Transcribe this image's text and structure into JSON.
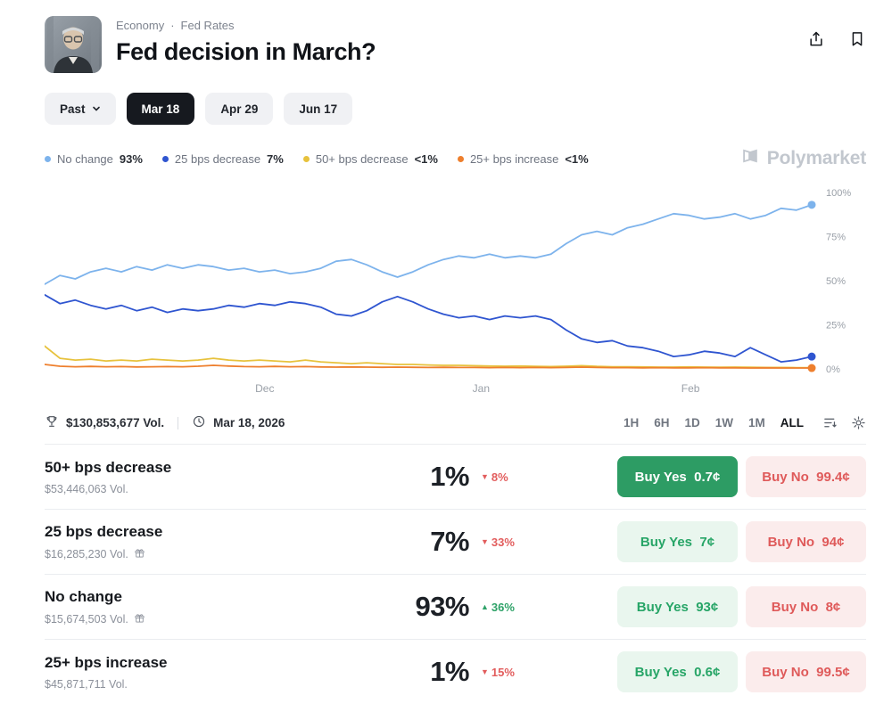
{
  "header": {
    "breadcrumb": {
      "category": "Economy",
      "separator": "·",
      "subcategory": "Fed Rates"
    },
    "title": "Fed decision in March?"
  },
  "tabs": [
    {
      "label": "Past",
      "has_chevron": true,
      "active": false
    },
    {
      "label": "Mar 18",
      "active": true
    },
    {
      "label": "Apr 29",
      "active": false
    },
    {
      "label": "Jun 17",
      "active": false
    }
  ],
  "legend": [
    {
      "label": "No change",
      "value": "93%",
      "color": "#7db3ec"
    },
    {
      "label": "25 bps decrease",
      "value": "7%",
      "color": "#2f55d0"
    },
    {
      "label": "50+ bps decrease",
      "value": "<1%",
      "color": "#e7c23d"
    },
    {
      "label": "25+ bps increase",
      "value": "<1%",
      "color": "#ee7f2d"
    }
  ],
  "brand": "Polymarket",
  "chart_data": {
    "type": "line",
    "title": "Fed decision in March? outcome probabilities",
    "ylim": [
      0,
      100
    ],
    "grid": false,
    "legend_position": "top-left",
    "x_step": 2,
    "yticks": [
      {
        "label": "100%",
        "value": 100
      },
      {
        "label": "75%",
        "value": 75
      },
      {
        "label": "50%",
        "value": 50
      },
      {
        "label": "25%",
        "value": 25
      },
      {
        "label": "0%",
        "value": 0
      }
    ],
    "xticks": [
      {
        "label": "Dec",
        "pos": 28.7
      },
      {
        "label": "Jan",
        "pos": 56.9
      },
      {
        "label": "Feb",
        "pos": 84.2
      }
    ],
    "series": [
      {
        "name": "50+ bps decrease",
        "color": "#e7c23d",
        "end_dot": false,
        "values": [
          13,
          6,
          5,
          5.5,
          4.5,
          5,
          4.5,
          5.5,
          5,
          4.5,
          5,
          6,
          5,
          4.5,
          5,
          4.5,
          4,
          5,
          4,
          3.5,
          3,
          3.5,
          3,
          2.5,
          2.5,
          2.2,
          2,
          2,
          1.8,
          1.6,
          1.5,
          1.6,
          1.4,
          1.3,
          1.5,
          1.8,
          1.4,
          1.2,
          1.2,
          1.1,
          1,
          1,
          1.1,
          1,
          0.9,
          1,
          0.9,
          0.8,
          0.8,
          0.7,
          0.7
        ]
      },
      {
        "name": "25+ bps increase",
        "color": "#ee7f2d",
        "end_dot": true,
        "values": [
          2.5,
          1.5,
          1.2,
          1.4,
          1.2,
          1.3,
          1.1,
          1.2,
          1.3,
          1.2,
          1.5,
          2,
          1.6,
          1.3,
          1.2,
          1.4,
          1.2,
          1.3,
          1.1,
          1,
          1.1,
          1,
          0.9,
          1,
          0.9,
          0.8,
          0.9,
          0.8,
          0.8,
          0.7,
          0.8,
          0.7,
          0.8,
          0.7,
          0.8,
          1,
          0.8,
          0.7,
          0.7,
          0.6,
          0.7,
          0.6,
          0.6,
          0.7,
          0.6,
          0.6,
          0.5,
          0.6,
          0.5,
          0.5,
          0.5
        ]
      },
      {
        "name": "25 bps decrease",
        "color": "#2f55d0",
        "end_dot": true,
        "values": [
          42,
          37,
          39,
          36,
          34,
          36,
          33,
          35,
          32,
          34,
          33,
          34,
          36,
          35,
          37,
          36,
          38,
          37,
          35,
          31,
          30,
          33,
          38,
          41,
          38,
          34,
          31,
          29,
          30,
          28,
          30,
          29,
          30,
          28,
          22,
          17,
          15,
          16,
          13,
          12,
          10,
          7,
          8,
          10,
          9,
          7,
          12,
          8,
          4,
          5,
          7
        ]
      },
      {
        "name": "No change",
        "color": "#7db3ec",
        "end_dot": true,
        "values": [
          48,
          53,
          51,
          55,
          57,
          55,
          58,
          56,
          59,
          57,
          59,
          58,
          56,
          57,
          55,
          56,
          54,
          55,
          57,
          61,
          62,
          59,
          55,
          52,
          55,
          59,
          62,
          64,
          63,
          65,
          63,
          64,
          63,
          65,
          71,
          76,
          78,
          76,
          80,
          82,
          85,
          88,
          87,
          85,
          86,
          88,
          85,
          87,
          91,
          90,
          93
        ]
      }
    ]
  },
  "stats": {
    "volume": "$130,853,677 Vol.",
    "date": "Mar 18, 2026"
  },
  "time_ranges": [
    "1H",
    "6H",
    "1D",
    "1W",
    "1M",
    "ALL"
  ],
  "active_range": "ALL",
  "outcomes": [
    {
      "name": "50+ bps decrease",
      "volume": "$53,446,063 Vol.",
      "has_gift": false,
      "percent": "1%",
      "direction": "down",
      "change": "8%",
      "yes_label": "Buy Yes",
      "yes_price": "0.7¢",
      "yes_variant": "solid",
      "no_label": "Buy No",
      "no_price": "99.4¢"
    },
    {
      "name": "25 bps decrease",
      "volume": "$16,285,230 Vol.",
      "has_gift": true,
      "percent": "7%",
      "direction": "down",
      "change": "33%",
      "yes_label": "Buy Yes",
      "yes_price": "7¢",
      "yes_variant": "subtle",
      "no_label": "Buy No",
      "no_price": "94¢"
    },
    {
      "name": "No change",
      "volume": "$15,674,503 Vol.",
      "has_gift": true,
      "percent": "93%",
      "direction": "up",
      "change": "36%",
      "yes_label": "Buy Yes",
      "yes_price": "93¢",
      "yes_variant": "subtle",
      "no_label": "Buy No",
      "no_price": "8¢"
    },
    {
      "name": "25+ bps increase",
      "volume": "$45,871,711 Vol.",
      "has_gift": false,
      "percent": "1%",
      "direction": "down",
      "change": "15%",
      "yes_label": "Buy Yes",
      "yes_price": "0.6¢",
      "yes_variant": "subtle",
      "no_label": "Buy No",
      "no_price": "99.5¢"
    }
  ]
}
